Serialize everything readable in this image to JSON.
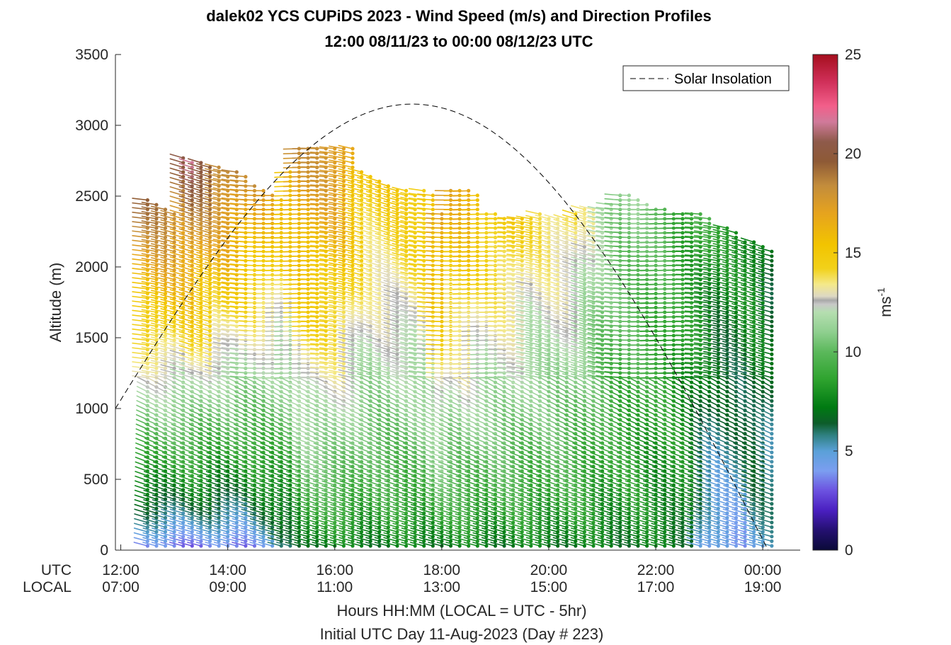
{
  "chart_data": {
    "type": "wind-barb-profile",
    "title_line1": "dalek02 YCS CUPiDS 2023 - Wind Speed (m/s) and Direction Profiles",
    "title_line2": "12:00 08/11/23 to 00:00 08/12/23  UTC",
    "ylabel": "Altitude (m)",
    "xlabel": "Hours HH:MM  (LOCAL = UTC - 5hr)",
    "subxlabel": "Initial UTC Day 11-Aug-2023 (Day # 223)",
    "utc_row_label": "UTC",
    "local_row_label": "LOCAL",
    "ylim": [
      0,
      3500
    ],
    "xlim_hours": [
      11.9,
      24.7
    ],
    "y_ticks": [
      "0",
      "500",
      "1000",
      "1500",
      "2000",
      "2500",
      "3000",
      "3500"
    ],
    "x_ticks": [
      {
        "hour": 12,
        "utc": "12:00",
        "local": "07:00"
      },
      {
        "hour": 14,
        "utc": "14:00",
        "local": "09:00"
      },
      {
        "hour": 16,
        "utc": "16:00",
        "local": "11:00"
      },
      {
        "hour": 18,
        "utc": "18:00",
        "local": "13:00"
      },
      {
        "hour": 20,
        "utc": "20:00",
        "local": "15:00"
      },
      {
        "hour": 22,
        "utc": "22:00",
        "local": "17:00"
      },
      {
        "hour": 24,
        "utc": "00:00",
        "local": "19:00"
      }
    ],
    "legend": {
      "entries": [
        "Solar Insolation"
      ],
      "location": "top-right"
    },
    "colorbar": {
      "label": "ms-1",
      "label_base": "ms",
      "label_sup": "-1",
      "range": [
        0,
        25
      ],
      "ticks": [
        "0",
        "5",
        "10",
        "15",
        "20",
        "25"
      ],
      "stops": [
        {
          "v": 0,
          "c": "#0a0a38"
        },
        {
          "v": 1,
          "c": "#241070"
        },
        {
          "v": 2,
          "c": "#4a1fc0"
        },
        {
          "v": 3,
          "c": "#6c52e0"
        },
        {
          "v": 4,
          "c": "#7b9ef0"
        },
        {
          "v": 5,
          "c": "#5aa0d8"
        },
        {
          "v": 5.8,
          "c": "#2f8080"
        },
        {
          "v": 6.4,
          "c": "#0d5d2a"
        },
        {
          "v": 7.2,
          "c": "#007a12"
        },
        {
          "v": 8.6,
          "c": "#2ea32e"
        },
        {
          "v": 10,
          "c": "#5bb85b"
        },
        {
          "v": 11,
          "c": "#8fcf8f"
        },
        {
          "v": 12,
          "c": "#b5deb0"
        },
        {
          "v": 12.4,
          "c": "#c8c8c8"
        },
        {
          "v": 12.6,
          "c": "#a8a8a8"
        },
        {
          "v": 12.8,
          "c": "#ddd8c4"
        },
        {
          "v": 13.4,
          "c": "#f4e98a"
        },
        {
          "v": 14.2,
          "c": "#f2d11a"
        },
        {
          "v": 15.4,
          "c": "#f2c400"
        },
        {
          "v": 17,
          "c": "#e6a31e"
        },
        {
          "v": 18.4,
          "c": "#c28c3c"
        },
        {
          "v": 19.6,
          "c": "#8e5a36"
        },
        {
          "v": 20.6,
          "c": "#8e5a4a"
        },
        {
          "v": 21.6,
          "c": "#d07a9a"
        },
        {
          "v": 22.4,
          "c": "#f25f8a"
        },
        {
          "v": 23.6,
          "c": "#d1305a"
        },
        {
          "v": 25,
          "c": "#a50f1e"
        }
      ]
    },
    "solar_insolation": {
      "style": "dashed",
      "color": "#000000",
      "rise_hour": 11.9,
      "peak_hour": 17.45,
      "set_hour": 24.1,
      "peak_altitude": 3150,
      "start_altitude": 1000
    },
    "profiles": {
      "time_start_hour": 12.5,
      "time_step_hours": 0.1667,
      "altitude_step_m": 33,
      "top_altitudes_m": [
        2480,
        2440,
        2420,
        2400,
        2780,
        2740,
        2740,
        2720,
        2720,
        2700,
        2680,
        2660,
        2600,
        2560,
        2520,
        2500,
        2700,
        2860,
        2840,
        2860,
        2850,
        2860,
        2850,
        2850,
        2700,
        2650,
        2620,
        2600,
        2560,
        2550,
        2520,
        2540,
        2520,
        2400,
        2550,
        2560,
        2550,
        2520,
        2400,
        2380,
        2370,
        2370,
        2360,
        2360,
        2380,
        2360,
        2360,
        2360,
        2400,
        2420,
        2420,
        2430,
        2460,
        2520,
        2530,
        2500,
        2460,
        2420,
        2420,
        2400,
        2400,
        2390,
        2380,
        2340,
        2300,
        2280,
        2250,
        2200,
        2180,
        2150,
        2130
      ],
      "ground_speed_mps": [
        3,
        3,
        3,
        3,
        3,
        3,
        3,
        3,
        3,
        3,
        3,
        3,
        3.5,
        4,
        4,
        5,
        5,
        6,
        7,
        7,
        7,
        7,
        7,
        7,
        7,
        7,
        7,
        7,
        7,
        7,
        7,
        7,
        7,
        7,
        7,
        7,
        7,
        7,
        7,
        7,
        7,
        7,
        7,
        7,
        7,
        7,
        7,
        7,
        7,
        7,
        7,
        7,
        7,
        7,
        7,
        7,
        7,
        7,
        7,
        7,
        7,
        7,
        5,
        4,
        4,
        4,
        4,
        4,
        5,
        5,
        5
      ],
      "top_speed_mps": [
        19,
        19,
        19,
        19,
        20,
        21,
        20,
        20,
        19,
        19,
        19,
        18,
        18,
        17,
        17,
        16,
        16,
        18,
        18,
        18,
        18,
        18,
        18,
        17,
        16,
        15,
        15,
        15,
        15,
        15,
        15,
        15,
        16,
        18,
        17,
        16,
        17,
        16,
        15,
        15,
        15,
        15,
        15,
        14,
        14,
        14,
        14,
        14,
        14,
        13,
        13,
        12,
        12,
        11,
        11,
        11,
        11,
        10,
        10,
        10,
        9,
        9,
        9,
        9,
        8,
        8,
        8,
        8,
        8,
        8,
        7
      ]
    }
  }
}
